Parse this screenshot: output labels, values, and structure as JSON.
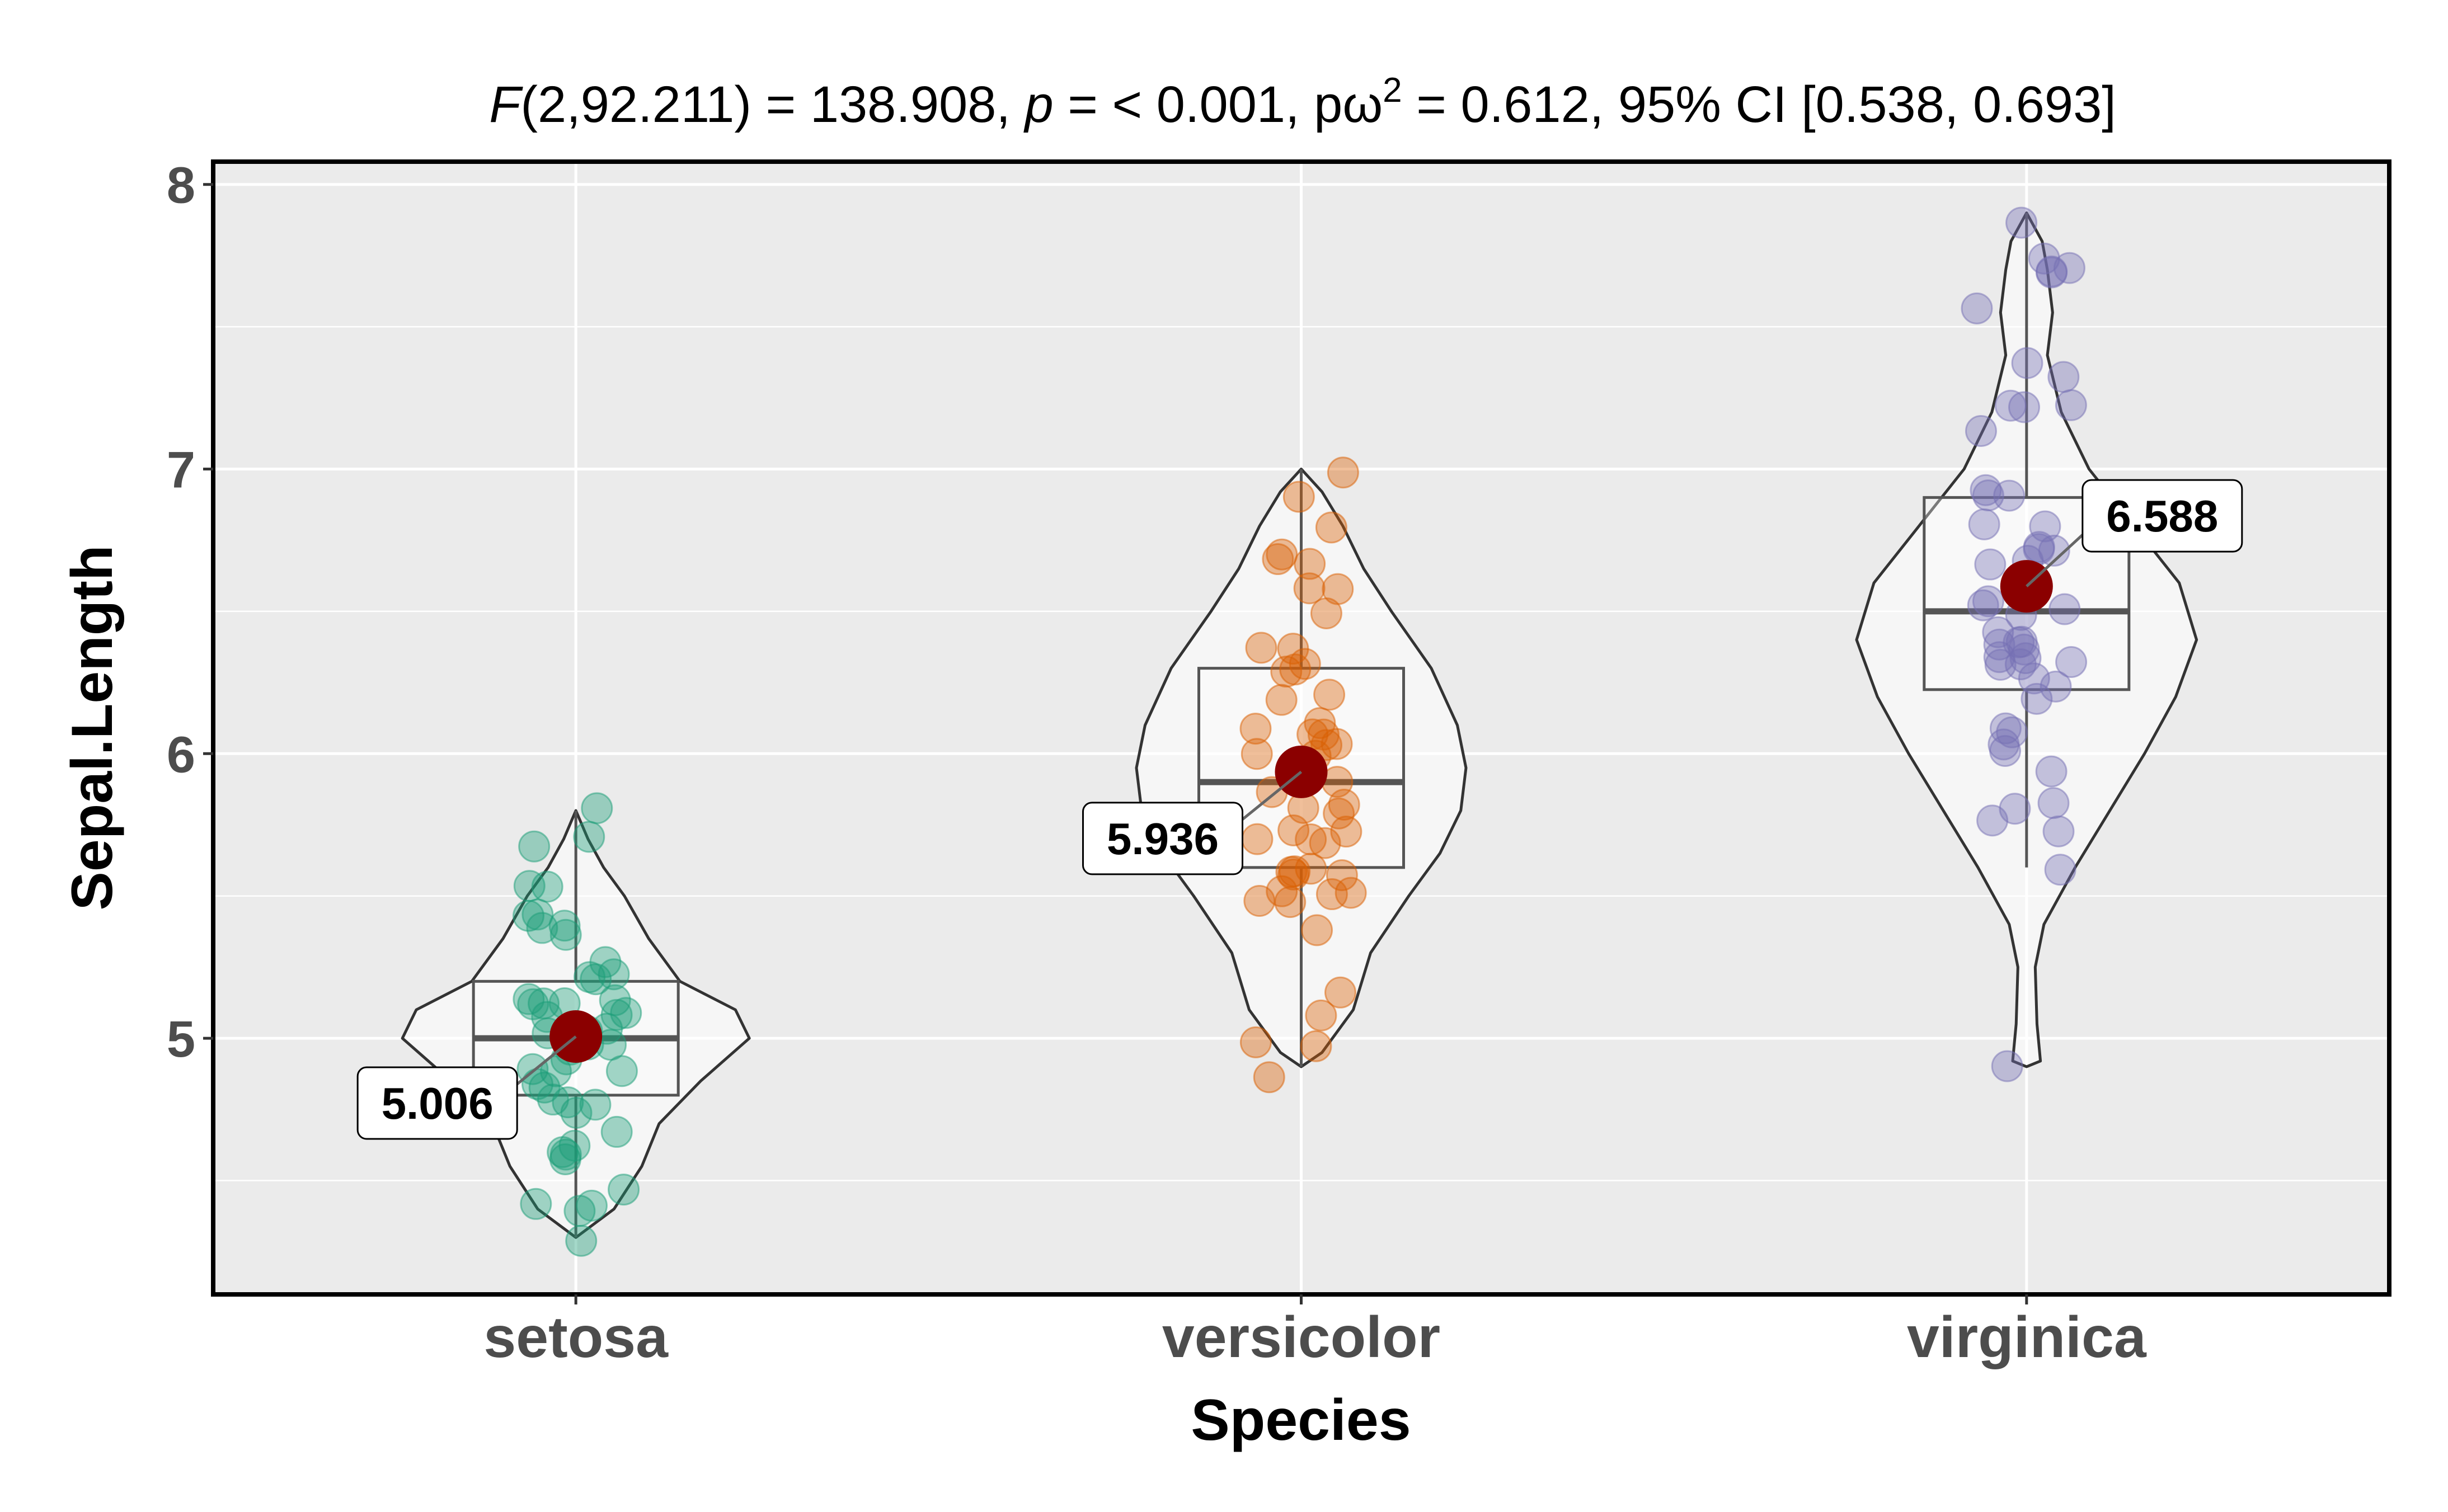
{
  "chart_data": {
    "type": "violin",
    "title_parts": [
      "F",
      "(2,92.211) = 138.908, ",
      "p",
      " = < 0.001, p",
      "ω",
      "2",
      " = 0.612, 95% CI [0.538, 0.693]"
    ],
    "xlabel": "Species",
    "ylabel": "Sepal.Length",
    "ylim": [
      4.1,
      8.08
    ],
    "y_ticks": [
      5,
      6,
      7,
      8
    ],
    "y_tick_labels": [
      "5",
      "6",
      "7",
      "8"
    ],
    "categories": [
      "setosa",
      "versicolor",
      "virginica"
    ],
    "colors": {
      "panel_bg": "#ebebeb",
      "grid": "#ffffff",
      "mean_point": "#8b0000",
      "setosa": "#1b9e77",
      "versicolor": "#d95f02",
      "virginica": "#7570b3"
    },
    "groups": [
      {
        "name": "setosa",
        "color": "#1b9e77",
        "mean": 5.006,
        "mean_label": "5.006",
        "label_side": "left",
        "box": {
          "min": 4.3,
          "q1": 4.8,
          "median": 5.0,
          "q3": 5.2,
          "max": 5.8
        },
        "density": [
          [
            4.3,
            0.0
          ],
          [
            4.4,
            0.22
          ],
          [
            4.55,
            0.38
          ],
          [
            4.7,
            0.48
          ],
          [
            4.85,
            0.72
          ],
          [
            5.0,
            1.0
          ],
          [
            5.1,
            0.92
          ],
          [
            5.2,
            0.6
          ],
          [
            5.35,
            0.42
          ],
          [
            5.5,
            0.28
          ],
          [
            5.6,
            0.16
          ],
          [
            5.7,
            0.07
          ],
          [
            5.8,
            0.0
          ]
        ],
        "points": [
          5.1,
          4.9,
          4.7,
          4.6,
          5.0,
          5.4,
          4.6,
          5.0,
          4.4,
          4.9,
          5.4,
          4.8,
          4.8,
          4.3,
          5.8,
          5.7,
          5.4,
          5.1,
          5.7,
          5.1,
          5.4,
          5.1,
          4.6,
          5.1,
          4.8,
          5.0,
          5.0,
          5.2,
          5.2,
          4.7,
          4.8,
          5.4,
          5.2,
          5.5,
          4.9,
          5.0,
          5.5,
          4.9,
          4.4,
          5.1,
          5.0,
          4.5,
          4.4,
          5.0,
          5.1,
          4.8,
          5.1,
          4.6,
          5.3,
          5.0
        ]
      },
      {
        "name": "versicolor",
        "color": "#d95f02",
        "mean": 5.936,
        "mean_label": "5.936",
        "label_side": "left",
        "box": {
          "min": 4.9,
          "q1": 5.6,
          "median": 5.9,
          "q3": 6.3,
          "max": 7.0
        },
        "density": [
          [
            4.9,
            0.0
          ],
          [
            4.95,
            0.12
          ],
          [
            5.1,
            0.3
          ],
          [
            5.3,
            0.4
          ],
          [
            5.5,
            0.62
          ],
          [
            5.65,
            0.8
          ],
          [
            5.8,
            0.92
          ],
          [
            5.95,
            0.95
          ],
          [
            6.1,
            0.9
          ],
          [
            6.3,
            0.75
          ],
          [
            6.5,
            0.52
          ],
          [
            6.65,
            0.36
          ],
          [
            6.8,
            0.24
          ],
          [
            6.92,
            0.12
          ],
          [
            7.0,
            0.0
          ]
        ],
        "points": [
          7.0,
          6.4,
          6.9,
          5.5,
          6.5,
          5.7,
          6.3,
          4.9,
          6.6,
          5.2,
          5.0,
          5.9,
          6.0,
          6.1,
          5.6,
          6.7,
          5.6,
          5.8,
          6.2,
          5.6,
          5.9,
          6.1,
          6.3,
          6.1,
          6.4,
          6.6,
          6.8,
          6.7,
          6.0,
          5.7,
          5.5,
          5.5,
          5.8,
          6.0,
          5.4,
          6.0,
          6.7,
          6.3,
          5.6,
          5.5,
          5.5,
          6.1,
          5.8,
          5.0,
          5.6,
          5.7,
          5.7,
          6.2,
          5.1,
          5.7
        ]
      },
      {
        "name": "virginica",
        "color": "#7570b3",
        "mean": 6.588,
        "mean_label": "6.588",
        "label_side": "right",
        "box": {
          "min": 5.6,
          "q1": 6.225,
          "median": 6.5,
          "q3": 6.9,
          "max": 7.9
        },
        "density": [
          [
            4.9,
            0.0
          ],
          [
            4.92,
            0.08
          ],
          [
            5.05,
            0.06
          ],
          [
            5.25,
            0.05
          ],
          [
            5.4,
            0.1
          ],
          [
            5.6,
            0.28
          ],
          [
            5.8,
            0.48
          ],
          [
            6.0,
            0.68
          ],
          [
            6.2,
            0.86
          ],
          [
            6.4,
            0.98
          ],
          [
            6.6,
            0.88
          ],
          [
            6.8,
            0.62
          ],
          [
            7.0,
            0.36
          ],
          [
            7.2,
            0.2
          ],
          [
            7.4,
            0.12
          ],
          [
            7.55,
            0.15
          ],
          [
            7.7,
            0.12
          ],
          [
            7.8,
            0.09
          ],
          [
            7.9,
            0.0
          ]
        ],
        "points": [
          6.3,
          5.8,
          7.1,
          6.3,
          6.5,
          7.6,
          4.9,
          7.3,
          6.7,
          7.2,
          6.5,
          6.4,
          6.8,
          5.7,
          5.8,
          6.4,
          6.5,
          7.7,
          7.7,
          6.0,
          6.9,
          5.6,
          7.7,
          6.3,
          6.7,
          7.2,
          6.2,
          6.1,
          6.4,
          7.2,
          7.4,
          7.9,
          6.4,
          6.3,
          6.1,
          7.7,
          6.3,
          6.4,
          6.0,
          6.9,
          6.7,
          6.9,
          5.8,
          6.8,
          6.7,
          6.7,
          6.3,
          6.5,
          6.2,
          5.9
        ]
      }
    ]
  }
}
